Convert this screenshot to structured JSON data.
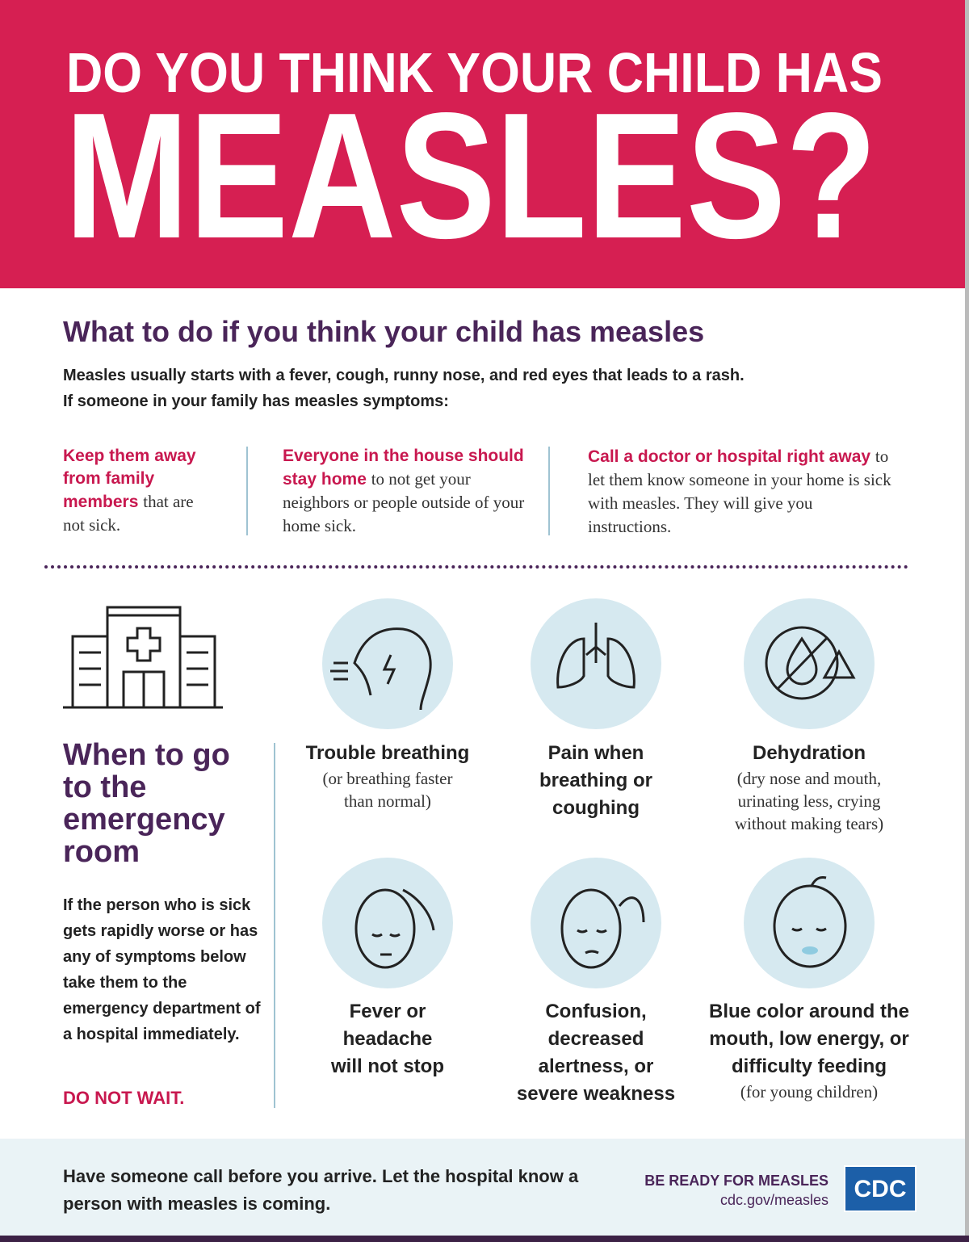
{
  "header": {
    "line1": "DO YOU THINK YOUR CHILD HAS",
    "line2": "MEASLES?"
  },
  "what_to_do": {
    "title": "What to do if you think your child has measles",
    "intro": [
      "Measles usually starts with a fever, cough, runny nose, and red eyes that leads to a rash.",
      "If someone in your family has measles symptoms:"
    ],
    "steps": [
      {
        "bold": "Keep them away from family members",
        "rest": "that are not sick."
      },
      {
        "bold": "Everyone in the house should stay home",
        "rest": "to not get your neighbors or people outside of your home sick."
      },
      {
        "bold": "Call a doctor or hospital right away",
        "rest": "to let them know someone in your home is sick with measles. They will give you instructions."
      }
    ]
  },
  "emergency": {
    "title": "When to go to the emergency room",
    "body": "If the person who is sick gets rapidly worse or has any of symptoms below take them to the emergency department of a hospital immediately.",
    "warning": "DO NOT WAIT."
  },
  "symptoms": [
    {
      "label": "Trouble breathing",
      "note": "(or breathing faster than normal)"
    },
    {
      "label": "Pain when breathing or coughing"
    },
    {
      "label": "Dehydration",
      "note": "(dry nose and mouth, urinating less, crying without making tears)"
    },
    {
      "label": "Fever or headache will not stop"
    },
    {
      "label": "Confusion, decreased alertness, or severe weakness"
    },
    {
      "label": "Blue color around the mouth, low energy, or difficulty feeding",
      "note": "(for young children)"
    }
  ],
  "footer": {
    "message": "Have someone call before you arrive. Let the hospital know a person with measles is coming.",
    "campaign": "BE READY FOR MEASLES",
    "url": "cdc.gov/measles",
    "logo": "CDC"
  }
}
